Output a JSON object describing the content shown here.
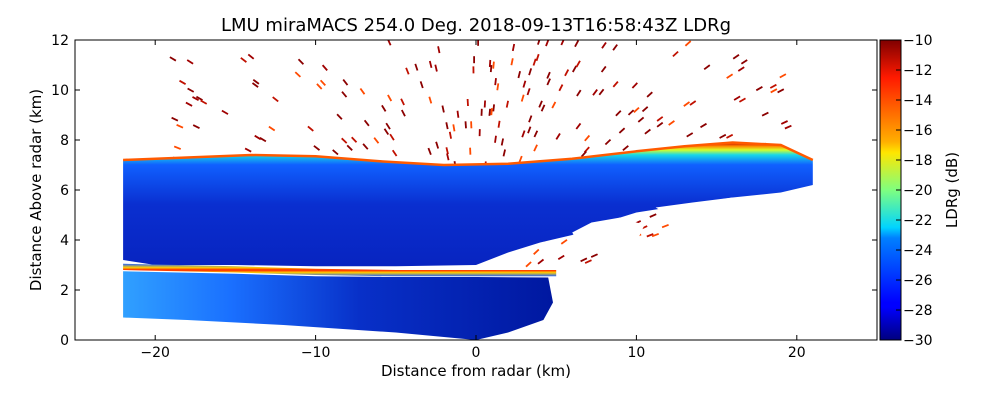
{
  "chart_data": {
    "type": "heatmap",
    "title": "LMU miraMACS 254.0 Deg. 2018-09-13T16:58:43Z  LDRg",
    "xlabel": "Distance from radar (km)",
    "ylabel": "Distance Above radar  (km)",
    "xlim": [
      -25,
      25
    ],
    "ylim": [
      0,
      12
    ],
    "xticks": [
      -20,
      -10,
      0,
      10,
      20
    ],
    "xtick_labels": [
      "−20",
      "−10",
      "0",
      "10",
      "20"
    ],
    "yticks": [
      0,
      2,
      4,
      6,
      8,
      10,
      12
    ],
    "ytick_labels": [
      "0",
      "2",
      "4",
      "6",
      "8",
      "10",
      "12"
    ],
    "colorbar": {
      "label": "LDRg (dB)",
      "range": [
        -30,
        -10
      ],
      "ticks": [
        -30,
        -28,
        -26,
        -24,
        -22,
        -20,
        -18,
        -16,
        -14,
        -12,
        -10
      ],
      "tick_labels": [
        "−30",
        "−28",
        "−26",
        "−24",
        "−22",
        "−20",
        "−18",
        "−16",
        "−14",
        "−12",
        "−10"
      ],
      "colormap": "jet"
    },
    "scan": {
      "radar_x_km": 0,
      "radar_y_km": 0,
      "elevation_deg": 254.0,
      "min_angle_deg": 20,
      "max_angle_deg": 162
    },
    "features": [
      {
        "name": "main-cloud-body",
        "x_range_km": [
          -22,
          21
        ],
        "y_range_km": [
          2.8,
          7.2
        ],
        "ldr_db": -28
      },
      {
        "name": "cloud-top-edge",
        "x_range_km": [
          -22,
          21
        ],
        "y_top_km": [
          7.3,
          7.6
        ],
        "ldr_db": -15
      },
      {
        "name": "melting-layer",
        "x_range_km": [
          -22,
          5
        ],
        "y_km": 2.8,
        "ldr_db": -14
      },
      {
        "name": "rain-below-melting-layer",
        "x_range_km": [
          -22,
          5
        ],
        "y_range_km": [
          0,
          2.6
        ],
        "ldr_db": -28
      },
      {
        "name": "scattered-clutter",
        "x_range_km": [
          -20,
          22
        ],
        "y_range_km": [
          3,
          12
        ],
        "ldr_db": -10
      }
    ]
  }
}
